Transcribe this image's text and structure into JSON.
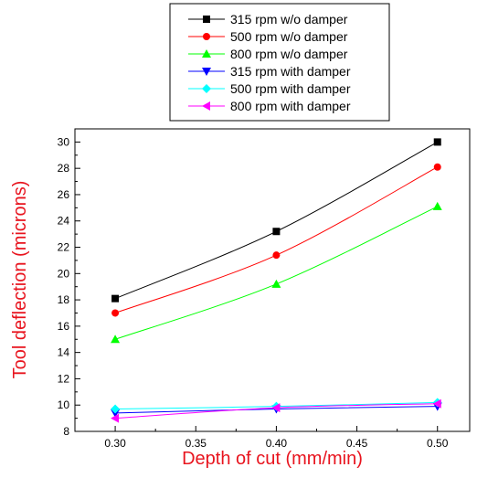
{
  "chart_data": {
    "type": "line",
    "xlabel": "Depth of cut (mm/min)",
    "ylabel": "Tool deflection (microns)",
    "axis_label_color": "#e8141e",
    "xlim": [
      0.275,
      0.52
    ],
    "ylim": [
      8,
      31
    ],
    "x_ticks": [
      "0.30",
      "0.35",
      "0.40",
      "0.45",
      "0.50"
    ],
    "y_ticks": [
      "8",
      "10",
      "12",
      "14",
      "16",
      "18",
      "20",
      "22",
      "24",
      "26",
      "28",
      "30"
    ],
    "grid": false,
    "legend_position": "top-center",
    "x": [
      0.3,
      0.4,
      0.5
    ],
    "series": [
      {
        "name": "315 rpm w/o damper",
        "values": [
          18.1,
          23.2,
          30.0
        ],
        "color": "#000000",
        "marker": "square"
      },
      {
        "name": "500 rpm w/o damper",
        "values": [
          17.0,
          21.4,
          28.1
        ],
        "color": "#ff0000",
        "marker": "circle"
      },
      {
        "name": "800 rpm w/o damper",
        "values": [
          15.0,
          19.2,
          25.1
        ],
        "color": "#00ff00",
        "marker": "triangle-up"
      },
      {
        "name": "315 rpm with damper",
        "values": [
          9.4,
          9.7,
          9.9
        ],
        "color": "#0000ff",
        "marker": "triangle-down"
      },
      {
        "name": "500 rpm with damper",
        "values": [
          9.7,
          9.9,
          10.2
        ],
        "color": "#00ffff",
        "marker": "diamond"
      },
      {
        "name": "800 rpm with damper",
        "values": [
          9.0,
          9.8,
          10.1
        ],
        "color": "#ff00ff",
        "marker": "triangle-left"
      }
    ]
  }
}
